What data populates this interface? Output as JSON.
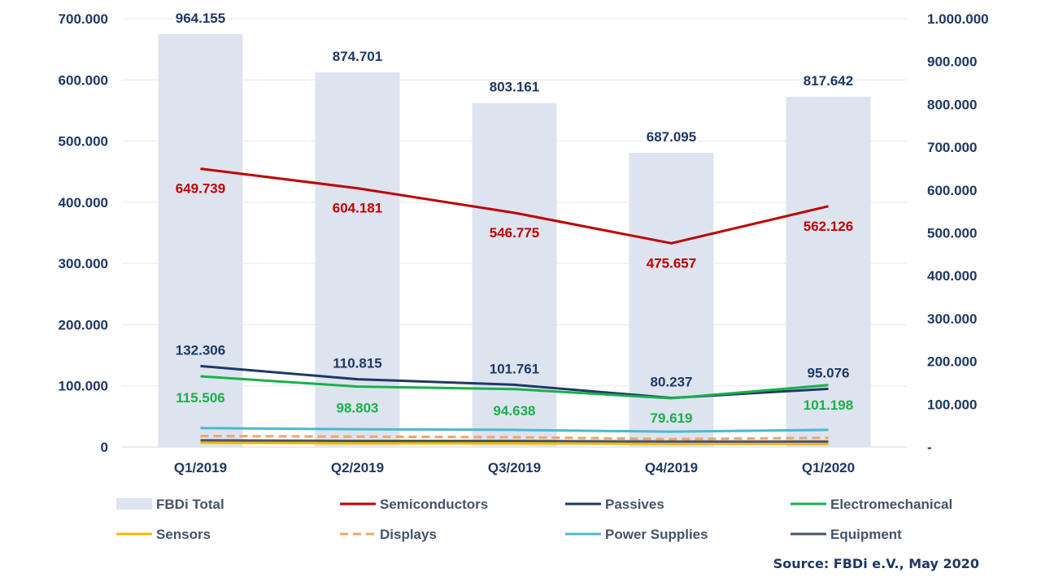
{
  "chart_data": {
    "type": "bar",
    "categories": [
      "Q1/2019",
      "Q2/2019",
      "Q3/2019",
      "Q4/2019",
      "Q1/2020"
    ],
    "left_axis": {
      "ylim": [
        0,
        700000
      ],
      "ticks": [
        0,
        100000,
        200000,
        300000,
        400000,
        500000,
        600000,
        700000
      ],
      "tick_labels": [
        "0",
        "100.000",
        "200.000",
        "300.000",
        "400.000",
        "500.000",
        "600.000",
        "700.000"
      ]
    },
    "right_axis": {
      "ylim": [
        0,
        1000000
      ],
      "ticks": [
        0,
        100000,
        200000,
        300000,
        400000,
        500000,
        600000,
        700000,
        800000,
        900000,
        1000000
      ],
      "tick_labels": [
        "-",
        "100.000",
        "200.000",
        "300.000",
        "400.000",
        "500.000",
        "600.000",
        "700.000",
        "800.000",
        "900.000",
        "1.000.000"
      ]
    },
    "grid": true,
    "legend_position": "bottom",
    "series": [
      {
        "name": "FBDi Total",
        "type": "bar",
        "axis": "right",
        "color": "#dde4ef",
        "values": [
          964155,
          874701,
          803161,
          687095,
          817642
        ],
        "labels": [
          "964.155",
          "874.701",
          "803.161",
          "687.095",
          "817.642"
        ],
        "label_color": "#1f3864"
      },
      {
        "name": "Semiconductors",
        "type": "line",
        "axis": "right",
        "color": "#c00000",
        "values": [
          649739,
          604181,
          546775,
          475657,
          562126
        ],
        "labels": [
          "649.739",
          "604.181",
          "546.775",
          "475.657",
          "562.126"
        ],
        "label_color": "#c00000"
      },
      {
        "name": "Passives",
        "type": "line",
        "axis": "left",
        "color": "#1f3864",
        "values": [
          132306,
          110815,
          101761,
          80237,
          95076
        ],
        "labels": [
          "132.306",
          "110.815",
          "101.761",
          "80.237",
          "95.076"
        ],
        "label_color": "#1f3864"
      },
      {
        "name": "Electromechanical",
        "type": "line",
        "axis": "left",
        "color": "#19b04b",
        "values": [
          115506,
          98803,
          94638,
          79619,
          101198
        ],
        "labels": [
          "115.506",
          "98.803",
          "94.638",
          "79.619",
          "101.198"
        ],
        "label_color": "#19b04b"
      },
      {
        "name": "Sensors",
        "type": "line",
        "axis": "left",
        "color": "#f5b800",
        "values": [
          7000,
          6000,
          6000,
          5000,
          5000
        ]
      },
      {
        "name": "Displays",
        "type": "line",
        "axis": "left",
        "color": "#f4a460",
        "dashed": true,
        "values": [
          18000,
          17000,
          16000,
          13000,
          15000
        ]
      },
      {
        "name": "Power Supplies",
        "type": "line",
        "axis": "left",
        "color": "#4db8d0",
        "values": [
          31000,
          29000,
          28000,
          25000,
          28000
        ]
      },
      {
        "name": "Equipment",
        "type": "line",
        "axis": "left",
        "color": "#44546a",
        "values": [
          11000,
          10000,
          10000,
          9000,
          9000
        ]
      }
    ]
  },
  "source": "Source: FBDi e.V., May 2020"
}
